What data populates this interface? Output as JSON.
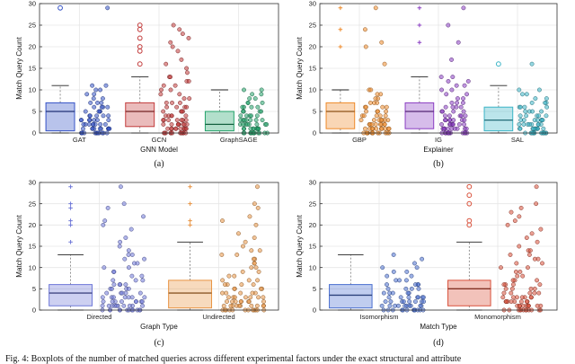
{
  "caption": "Fig. 4: Boxplots of the number of matched queries across different experimental factors under the exact structural and attribute",
  "chart_data": [
    {
      "type": "box",
      "panel_label": "(a)",
      "xlabel": "GNN Model",
      "ylabel": "Match Query Count",
      "ylim": [
        0,
        30
      ],
      "yticks": [
        0,
        5,
        10,
        15,
        20,
        25,
        30
      ],
      "groups": [
        {
          "name": "GAT",
          "color": "#3553c6",
          "q1": 0.5,
          "median": 5,
          "q3": 7,
          "whisker_low": 0,
          "whisker_high": 11,
          "outliers": [
            29
          ],
          "scatter_max": 11,
          "scatter_top": [
            29
          ]
        },
        {
          "name": "GCN",
          "color": "#c23b3b",
          "q1": 1.5,
          "median": 5,
          "q3": 7,
          "whisker_low": 0,
          "whisker_high": 13,
          "outliers": [
            16,
            19,
            20,
            22,
            24,
            25
          ],
          "scatter_max": 13,
          "scatter_top": [
            14,
            15,
            16,
            17,
            19,
            20,
            21,
            22,
            23,
            24,
            25
          ]
        },
        {
          "name": "GraphSAGE",
          "color": "#23a26a",
          "q1": 0.5,
          "median": 2,
          "q3": 5,
          "whisker_low": 0,
          "whisker_high": 10,
          "outliers": [],
          "scatter_max": 10,
          "scatter_top": []
        }
      ]
    },
    {
      "type": "box",
      "panel_label": "(b)",
      "xlabel": "Explainer",
      "ylabel": "Match Query Count",
      "ylim": [
        0,
        30
      ],
      "yticks": [
        0,
        5,
        10,
        15,
        20,
        25,
        30
      ],
      "groups": [
        {
          "name": "GBP",
          "color": "#ee8a2a",
          "q1": 1,
          "median": 5,
          "q3": 7,
          "whisker_low": 0,
          "whisker_high": 10,
          "outliers": [
            20,
            24,
            29
          ],
          "scatter_max": 10,
          "scatter_top": [
            16,
            20,
            21,
            24,
            29
          ]
        },
        {
          "name": "IG",
          "color": "#8a3ec2",
          "q1": 1,
          "median": 5,
          "q3": 7,
          "whisker_low": 0,
          "whisker_high": 13,
          "outliers": [
            21,
            25,
            29
          ],
          "scatter_max": 13,
          "scatter_top": [
            17,
            21,
            25,
            29
          ]
        },
        {
          "name": "SAL",
          "color": "#3bb4c6",
          "q1": 0.5,
          "median": 3,
          "q3": 6,
          "whisker_low": 0,
          "whisker_high": 11,
          "outliers": [
            16
          ],
          "scatter_max": 10,
          "scatter_top": [
            16
          ]
        }
      ]
    },
    {
      "type": "box",
      "panel_label": "(c)",
      "xlabel": "Graph Type",
      "ylabel": "Match Query Count",
      "ylim": [
        0,
        30
      ],
      "yticks": [
        0,
        5,
        10,
        15,
        20,
        25,
        30
      ],
      "groups": [
        {
          "name": "Directed",
          "color": "#6f78d8",
          "q1": 1,
          "median": 4,
          "q3": 6,
          "whisker_low": 0,
          "whisker_high": 13,
          "outliers": [
            16,
            20,
            21,
            24,
            25,
            29
          ],
          "scatter_max": 13,
          "scatter_top": [
            14,
            15,
            16,
            17,
            19,
            20,
            21,
            22,
            24,
            25,
            29
          ]
        },
        {
          "name": "Undirected",
          "color": "#e89443",
          "q1": 0.5,
          "median": 4,
          "q3": 7,
          "whisker_low": 0,
          "whisker_high": 16,
          "outliers": [
            20,
            21,
            25,
            29
          ],
          "scatter_max": 14,
          "scatter_top": [
            15,
            16,
            17,
            18,
            20,
            21,
            22,
            24,
            25,
            29
          ]
        }
      ]
    },
    {
      "type": "box",
      "panel_label": "(d)",
      "xlabel": "Match Type",
      "ylabel": "Match Query Count",
      "ylim": [
        0,
        30
      ],
      "yticks": [
        0,
        5,
        10,
        15,
        20,
        25,
        30
      ],
      "groups": [
        {
          "name": "Isomorphism",
          "color": "#4a6fd0",
          "q1": 0.5,
          "median": 3.5,
          "q3": 6,
          "whisker_low": 0,
          "whisker_high": 13,
          "outliers": [],
          "scatter_max": 10,
          "scatter_top": [
            11,
            12,
            13
          ]
        },
        {
          "name": "Monomorphism",
          "color": "#d9503a",
          "q1": 1,
          "median": 5,
          "q3": 7,
          "whisker_low": 0,
          "whisker_high": 16,
          "outliers": [
            20,
            21,
            25,
            27,
            29
          ],
          "scatter_max": 14,
          "scatter_top": [
            15,
            16,
            17,
            18,
            19,
            20,
            21,
            22,
            23,
            24,
            25,
            29
          ]
        }
      ]
    }
  ]
}
